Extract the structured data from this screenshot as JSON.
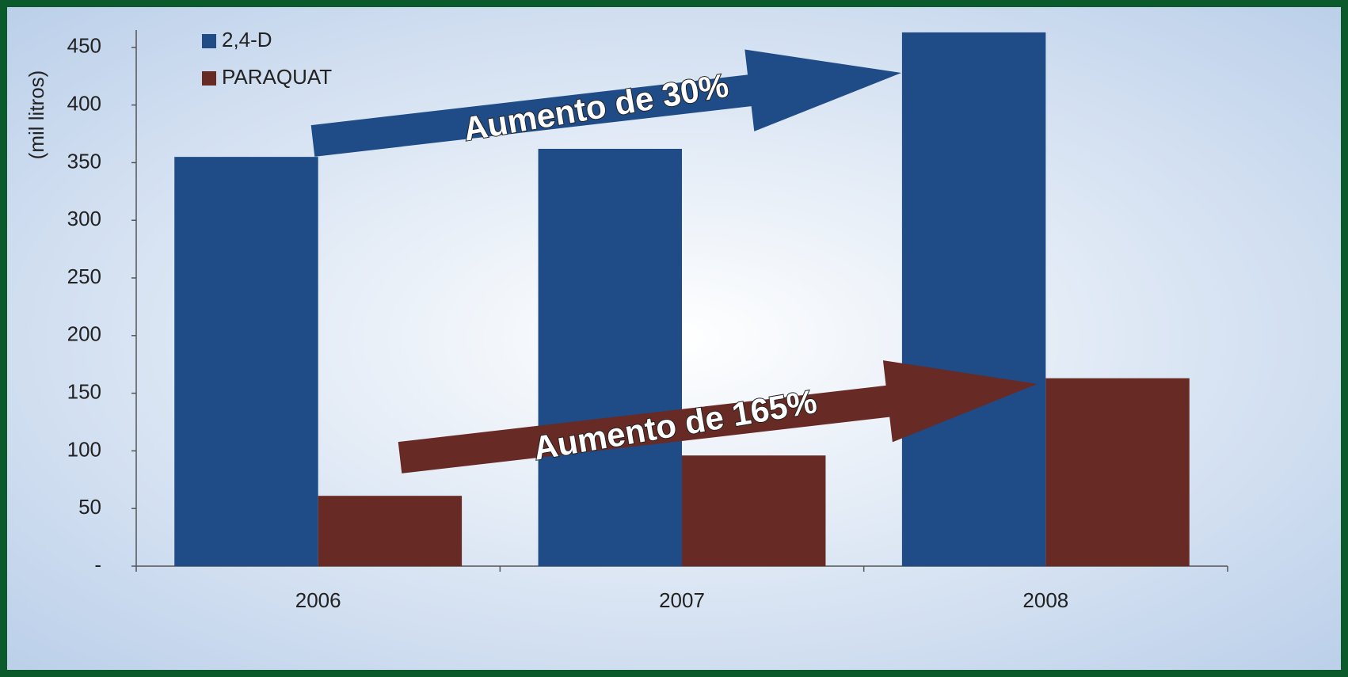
{
  "chart_data": {
    "type": "bar",
    "y_label": "(mil litros)",
    "categories": [
      "2006",
      "2007",
      "2008"
    ],
    "series": [
      {
        "name": "2,4-D",
        "color": "#1f4b87",
        "values": [
          355,
          362,
          463
        ]
      },
      {
        "name": "PARAQUAT",
        "color": "#682a25",
        "values": [
          61,
          96,
          163
        ]
      }
    ],
    "ylim": [
      0,
      465
    ],
    "yticks": [
      {
        "value": 0,
        "label": "-"
      },
      50,
      100,
      150,
      200,
      250,
      300,
      350,
      400,
      450
    ],
    "legend": "top-left",
    "annotations": [
      "Aumento de 30%",
      "Aumento de 165%"
    ]
  }
}
